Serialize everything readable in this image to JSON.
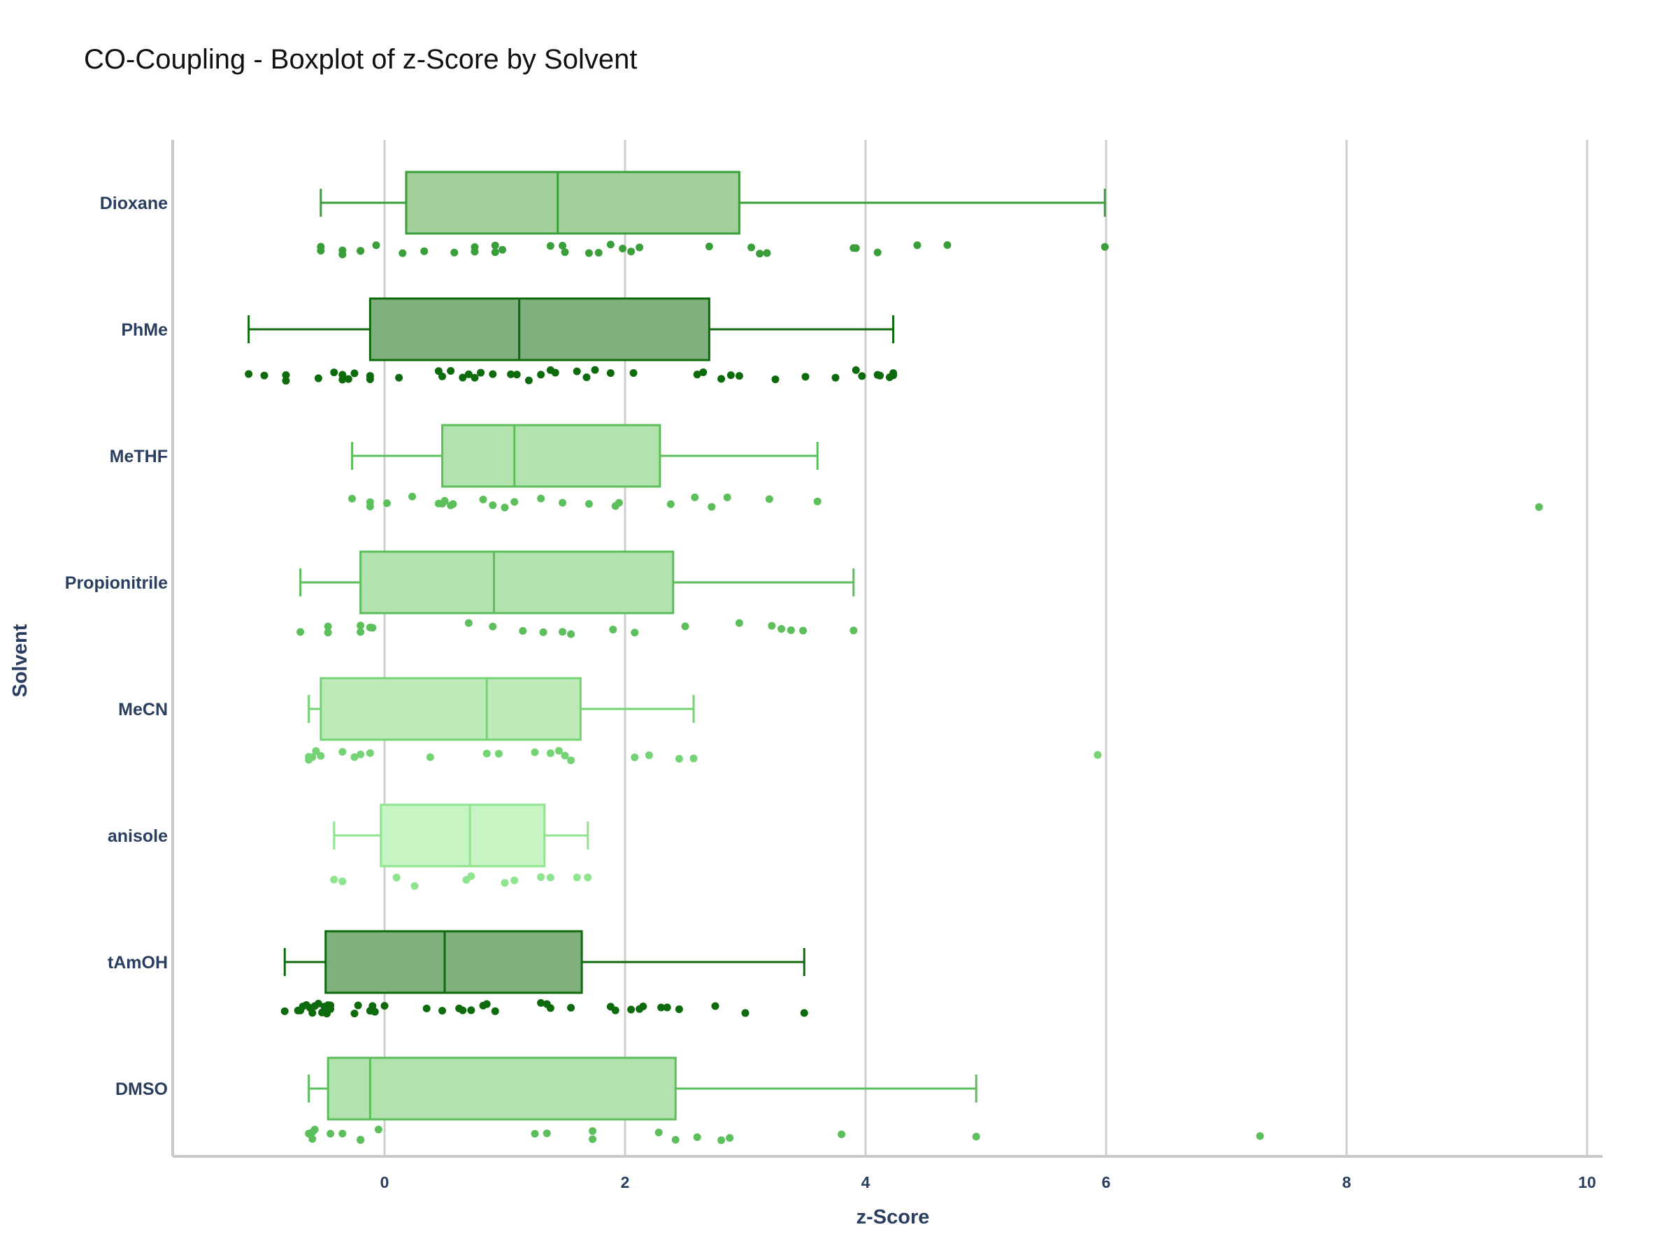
{
  "chart_data": {
    "type": "box",
    "title": "CO-Coupling - Boxplot of z-Score by Solvent",
    "xlabel": "z-Score",
    "ylabel": "Solvent",
    "xlim": [
      -1.75,
      10.2
    ],
    "xticks": [
      0,
      2,
      4,
      6,
      8,
      10
    ],
    "grid": "vertical",
    "orientation": "horizontal",
    "categories": [
      "Dioxane",
      "PhMe",
      "MeTHF",
      "Propionitrile",
      "MeCN",
      "anisole",
      "tAmOH",
      "DMSO"
    ],
    "series": [
      {
        "category": "Dioxane",
        "color": "#3a9e3a",
        "fill": "#a1d09b",
        "min": -0.53,
        "q1": 0.18,
        "median": 1.44,
        "q3": 2.95,
        "max": 5.99,
        "points": [
          -0.53,
          -0.53,
          -0.35,
          -0.35,
          -0.2,
          -0.2,
          -0.07,
          0.15,
          0.33,
          0.58,
          0.75,
          0.75,
          0.92,
          0.92,
          0.98,
          1.38,
          1.48,
          1.5,
          1.7,
          1.78,
          1.88,
          1.98,
          2.05,
          2.12,
          2.7,
          3.05,
          3.12,
          3.18,
          3.9,
          3.92,
          4.1,
          4.43,
          4.68,
          5.99
        ]
      },
      {
        "category": "PhMe",
        "color": "#0d6b0d",
        "fill": "#80b07e",
        "min": -1.13,
        "q1": -0.12,
        "median": 1.12,
        "q3": 2.7,
        "max": 4.23,
        "points": [
          -1.13,
          -1.0,
          -0.82,
          -0.82,
          -0.55,
          -0.42,
          -0.35,
          -0.35,
          -0.3,
          -0.25,
          -0.12,
          -0.12,
          0.12,
          0.45,
          0.48,
          0.55,
          0.65,
          0.7,
          0.75,
          0.8,
          0.9,
          1.05,
          1.1,
          1.2,
          1.3,
          1.38,
          1.42,
          1.6,
          1.68,
          1.75,
          1.88,
          2.07,
          2.6,
          2.65,
          2.8,
          2.88,
          2.95,
          3.25,
          3.5,
          3.75,
          3.92,
          3.97,
          4.1,
          4.12,
          4.2,
          4.23,
          4.23
        ]
      },
      {
        "category": "MeTHF",
        "color": "#5cbf5c",
        "fill": "#b2e2ad",
        "min": -0.27,
        "q1": 0.48,
        "median": 1.08,
        "q3": 2.29,
        "max": 3.6,
        "points": [
          9.6,
          -0.27,
          -0.12,
          -0.12,
          0.02,
          0.23,
          0.45,
          0.48,
          0.5,
          0.55,
          0.57,
          0.82,
          0.9,
          1.0,
          1.08,
          1.3,
          1.48,
          1.7,
          1.92,
          1.95,
          2.38,
          2.58,
          2.72,
          2.85,
          3.2,
          3.6
        ]
      },
      {
        "category": "Propionitrile",
        "color": "#5cbf5c",
        "fill": "#b2e2ad",
        "min": -0.7,
        "q1": -0.2,
        "median": 0.91,
        "q3": 2.4,
        "max": 3.9,
        "points": [
          -0.7,
          -0.47,
          -0.47,
          -0.2,
          -0.2,
          -0.12,
          -0.1,
          0.7,
          0.9,
          1.15,
          1.32,
          1.48,
          1.55,
          1.9,
          2.08,
          2.5,
          2.95,
          3.22,
          3.3,
          3.38,
          3.48,
          3.9
        ]
      },
      {
        "category": "MeCN",
        "color": "#74d374",
        "fill": "#bdeab8",
        "min": -0.63,
        "q1": -0.53,
        "median": 0.85,
        "q3": 1.63,
        "max": 2.57,
        "points": [
          5.93,
          -0.63,
          -0.63,
          -0.6,
          -0.57,
          -0.53,
          -0.35,
          -0.25,
          -0.2,
          -0.12,
          0.38,
          0.85,
          0.95,
          1.25,
          1.38,
          1.45,
          1.5,
          1.55,
          2.08,
          2.2,
          2.45,
          2.57
        ]
      },
      {
        "category": "anisole",
        "color": "#8fe58f",
        "fill": "#c6f4c2",
        "min": -0.42,
        "q1": -0.03,
        "median": 0.71,
        "q3": 1.33,
        "max": 1.69,
        "points": [
          -0.42,
          -0.35,
          -0.35,
          0.1,
          0.25,
          0.68,
          0.72,
          1.0,
          1.08,
          1.3,
          1.38,
          1.6,
          1.69
        ]
      },
      {
        "category": "tAmOH",
        "color": "#0d6b0d",
        "fill": "#80b07e",
        "min": -0.83,
        "q1": -0.49,
        "median": 0.5,
        "q3": 1.64,
        "max": 3.49,
        "points": [
          -0.83,
          -0.72,
          -0.7,
          -0.68,
          -0.65,
          -0.62,
          -0.6,
          -0.58,
          -0.55,
          -0.52,
          -0.5,
          -0.48,
          -0.47,
          -0.45,
          -0.45,
          -0.25,
          -0.22,
          -0.12,
          -0.1,
          -0.08,
          0.0,
          0.35,
          0.48,
          0.62,
          0.65,
          0.72,
          0.82,
          0.85,
          0.92,
          1.3,
          1.35,
          1.38,
          1.55,
          1.88,
          1.92,
          2.05,
          2.12,
          2.15,
          2.3,
          2.35,
          2.45,
          2.75,
          3.0,
          3.49
        ]
      },
      {
        "category": "DMSO",
        "color": "#5cbf5c",
        "fill": "#b2e2ad",
        "min": -0.63,
        "q1": -0.47,
        "median": -0.12,
        "q3": 2.42,
        "max": 4.92,
        "points": [
          7.28,
          -0.63,
          -0.6,
          -0.6,
          -0.58,
          -0.45,
          -0.35,
          -0.2,
          -0.2,
          -0.05,
          1.25,
          1.35,
          1.73,
          1.73,
          2.28,
          2.42,
          2.6,
          2.8,
          2.87,
          3.8,
          4.92
        ]
      }
    ]
  }
}
